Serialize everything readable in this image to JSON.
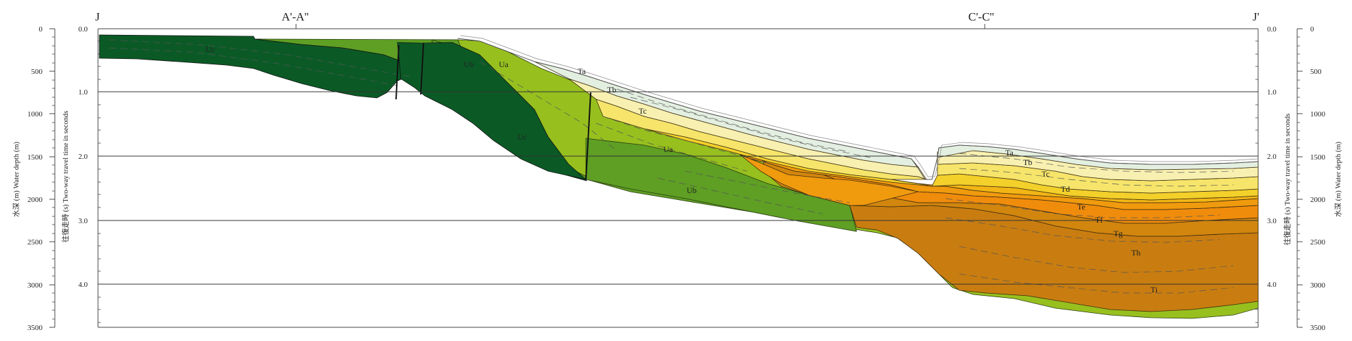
{
  "profile": {
    "start_label": "J",
    "end_label": "J'",
    "crossings": [
      {
        "id": "a",
        "label": "A'-A''"
      },
      {
        "id": "c",
        "label": "C'-C''"
      }
    ]
  },
  "axes": {
    "twt_title_left": "往復走時 (s)  Two-way travel time in seconds",
    "twt_title_right": "往復走時 (s)  Two-way travel time in seconds",
    "depth_title_left": "水深 (m)  Water depth (m)",
    "depth_title_right": "水深 (m)  Water depth (m)",
    "twt_ticks": [
      "0.0",
      "1.0",
      "2.0",
      "3.0",
      "4.0"
    ],
    "depth_ticks": [
      "0",
      "500",
      "1000",
      "1500",
      "2000",
      "2500",
      "3000",
      "3500"
    ]
  },
  "units": {
    "Uc_1": "Uc",
    "Ub_1": "Ub",
    "Ua_1": "Ua",
    "Uc_2": "Uc",
    "Ua_2": "Ua",
    "Ub_2": "Ub",
    "Ta_1": "Ta",
    "Tb_1": "Tb",
    "Tc_1": "Tc",
    "Ta_2": "Ta",
    "Tb_2": "Tb",
    "Tc_2": "Tc",
    "Td": "Td",
    "Te": "Te",
    "Tf": "Tf",
    "Tg": "Tg",
    "Th": "Th",
    "Ti": "Ti"
  },
  "colors": {
    "Uc": "#0b5a26",
    "Ub": "#5e9f24",
    "Ua": "#97c01e",
    "Ta": "#e3efe0",
    "Tb": "#f7f0b0",
    "Tc": "#f6e56a",
    "Td": "#f3d02a",
    "Te": "#f2b515",
    "Tf": "#f09a0e",
    "Tg": "#f08c0c",
    "Th": "#d2860e",
    "Ti": "#c97d10"
  }
}
